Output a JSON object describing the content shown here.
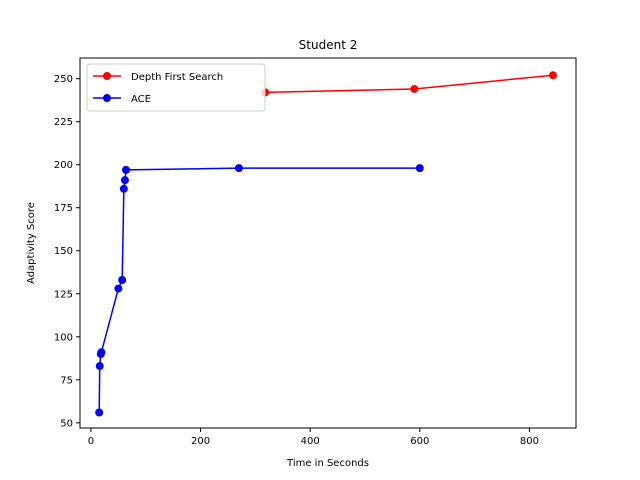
{
  "chart_data": {
    "type": "line",
    "title": "Student 2",
    "xlabel": "Time in Seconds",
    "ylabel": "Adaptivity Score",
    "xlim": [
      -20,
      885
    ],
    "ylim": [
      47,
      262
    ],
    "xticks": [
      0,
      200,
      400,
      600,
      800
    ],
    "yticks": [
      50,
      75,
      100,
      125,
      150,
      175,
      200,
      225,
      250
    ],
    "grid": false,
    "legend_position": "top-left",
    "series": [
      {
        "name": "Depth First Search",
        "color": "#ff0000",
        "marker": "circle",
        "x": [
          318,
          590,
          843
        ],
        "y": [
          242,
          244,
          252
        ]
      },
      {
        "name": "ACE",
        "color": "#0000ff",
        "marker": "circle",
        "x": [
          15,
          16,
          18,
          19,
          50,
          57,
          60,
          62,
          64,
          270,
          600
        ],
        "y": [
          56,
          83,
          90,
          91,
          128,
          133,
          186,
          191,
          197,
          198,
          198
        ]
      }
    ]
  }
}
